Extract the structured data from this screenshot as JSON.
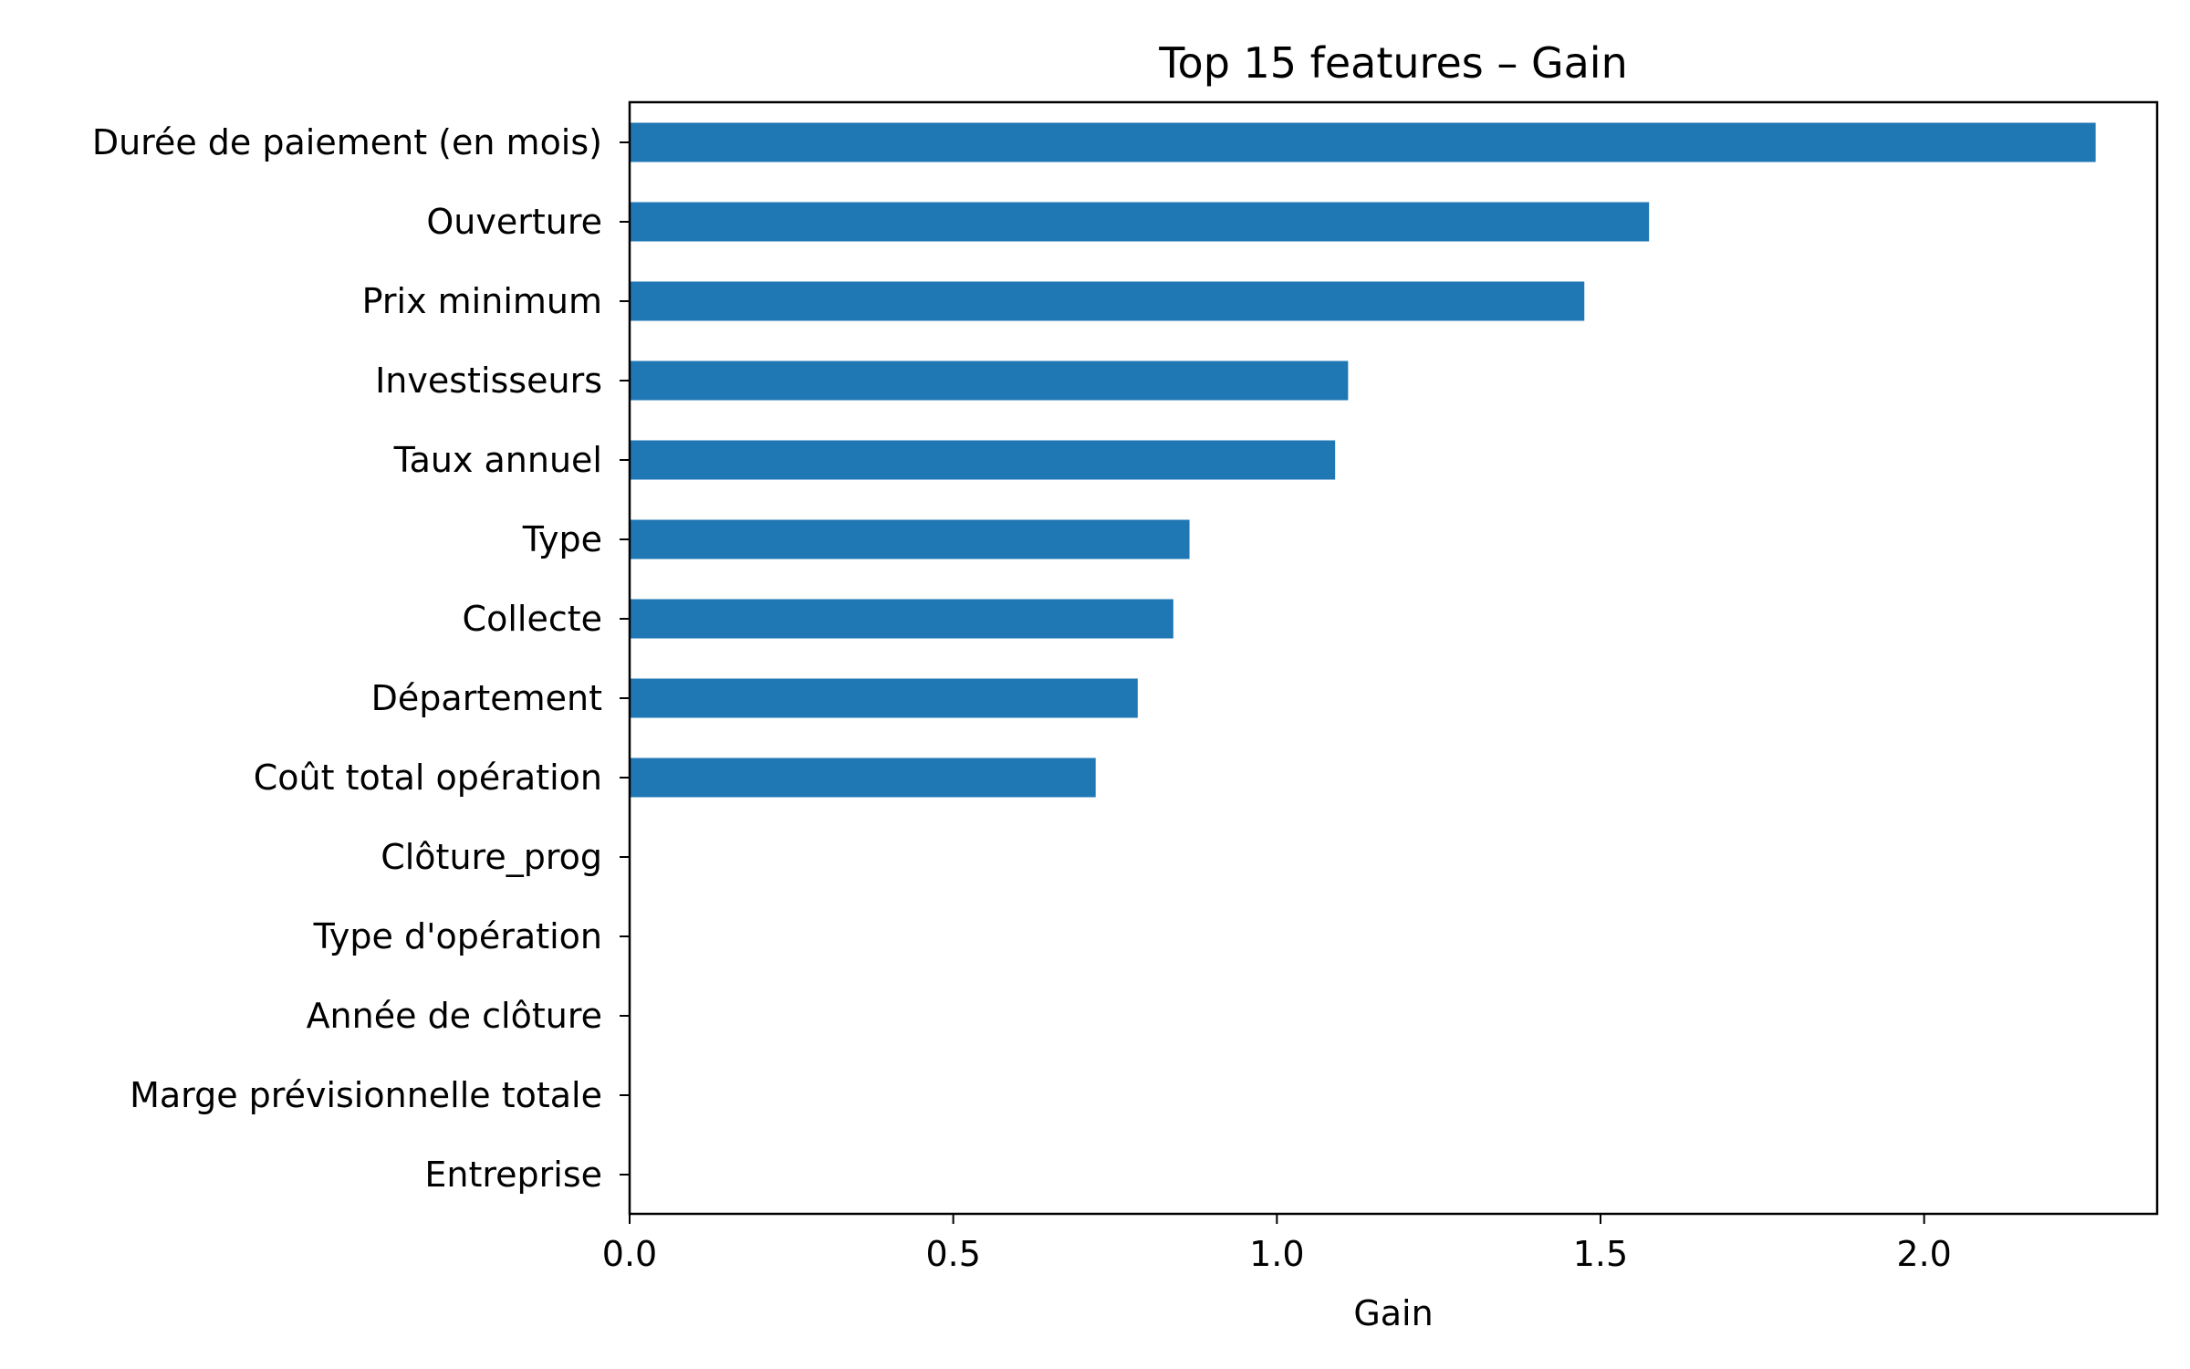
{
  "chart_data": {
    "type": "bar",
    "orientation": "horizontal",
    "title": "Top 15 features – Gain",
    "xlabel": "Gain",
    "ylabel": "",
    "xlim": [
      0,
      2.36
    ],
    "x_ticks": [
      0.0,
      0.5,
      1.0,
      1.5,
      2.0
    ],
    "x_tick_labels": [
      "0.0",
      "0.5",
      "1.0",
      "1.5",
      "2.0"
    ],
    "categories": [
      "Durée de paiement (en mois)",
      "Ouverture",
      "Prix minimum",
      "Investisseurs",
      "Taux annuel",
      "Type",
      "Collecte",
      "Département",
      "Coût total opération",
      "Clôture_prog",
      "Type d'opération",
      "Année de clôture",
      "Marge prévisionnelle totale",
      "Entreprise"
    ],
    "values": [
      2.265,
      1.575,
      1.475,
      1.11,
      1.09,
      0.865,
      0.84,
      0.785,
      0.72,
      0,
      0,
      0,
      0,
      0
    ],
    "bar_color": "#1f77b4",
    "grid": false,
    "legend": false
  }
}
